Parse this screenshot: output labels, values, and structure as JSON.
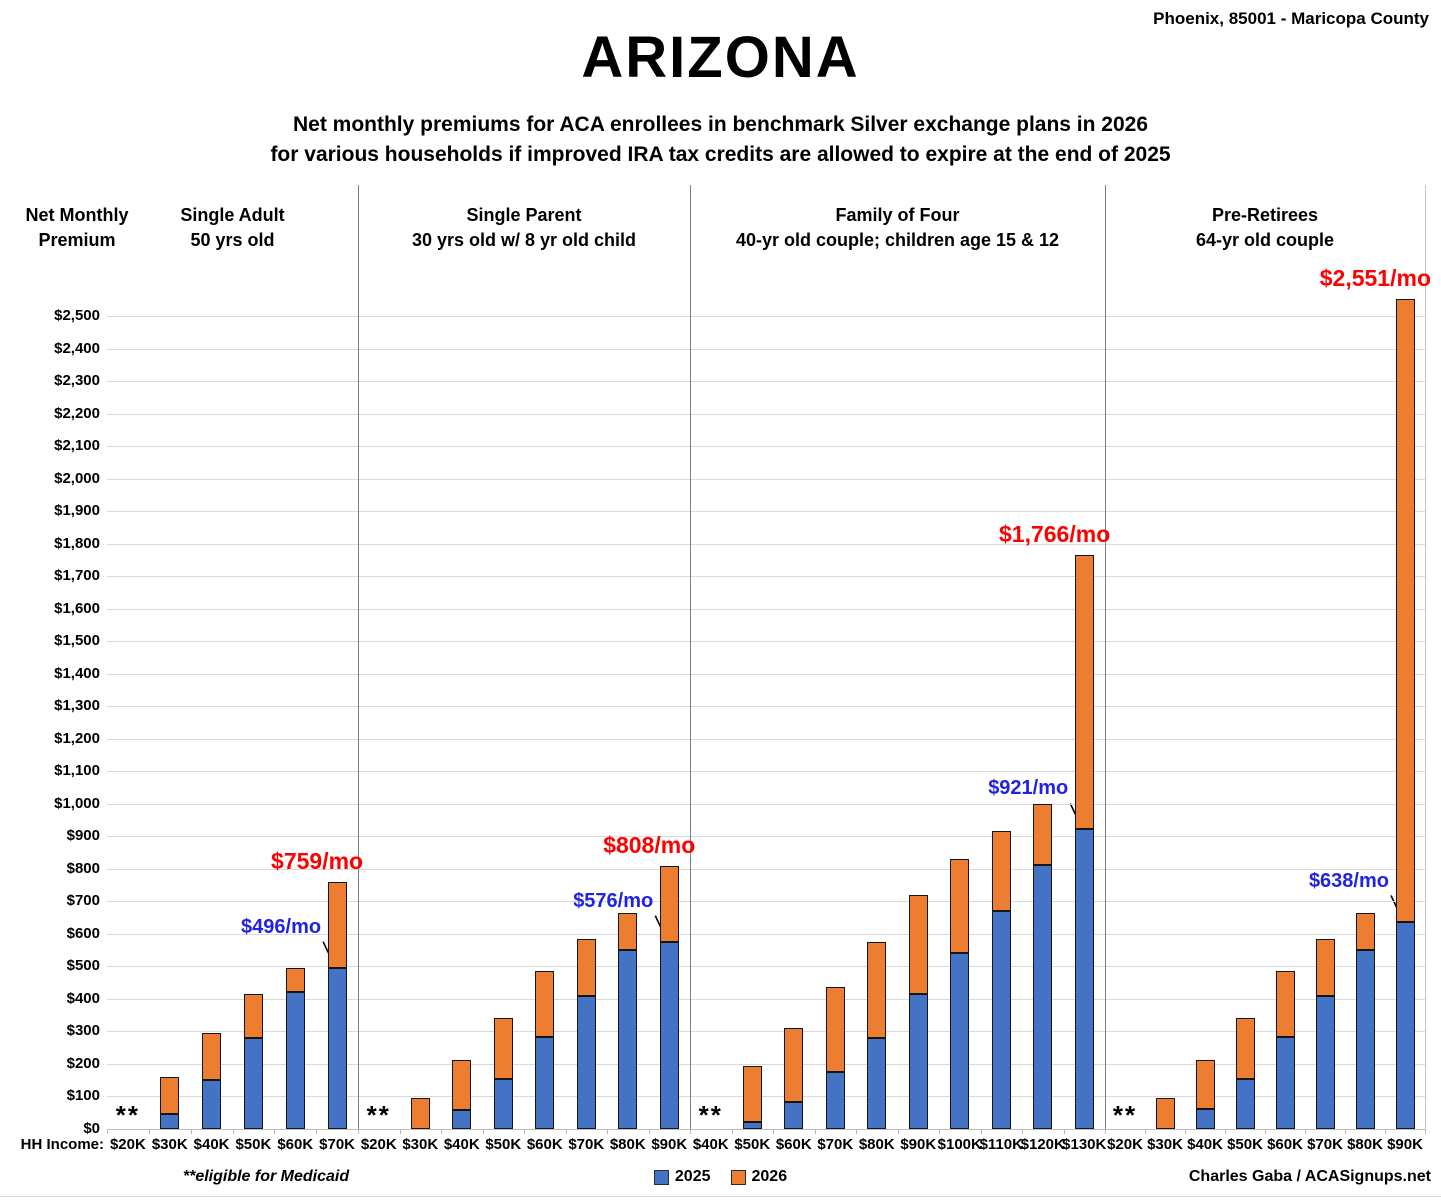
{
  "header": {
    "location": "Phoenix, 85001 - Maricopa County",
    "title": "ARIZONA",
    "subtitle_line1": "Net monthly premiums for ACA enrollees in benchmark Silver exchange plans in 2026",
    "subtitle_line2": "for various households if improved IRA tax credits are allowed to expire at the end of 2025",
    "axis_title_line1": "Net Monthly",
    "axis_title_line2": "Premium"
  },
  "footer": {
    "hh_income_label": "HH Income:",
    "medicaid_note": "**eligible for Medicaid",
    "credit": "Charles Gaba / ACASignups.net"
  },
  "legend": [
    {
      "label": "2025",
      "color": "#4472C4"
    },
    {
      "label": "2026",
      "color": "#ED7D31"
    }
  ],
  "colors": {
    "bar_2025": "#4472C4",
    "bar_2026": "#ED7D31",
    "annotation_2025": "#2222E6",
    "annotation_2026": "#FF0000",
    "gridline": "#D9D9D9",
    "separator": "#7F7F7F"
  },
  "chart_data": {
    "type": "bar",
    "title": "ARIZONA",
    "subtitle": "Net monthly premiums for ACA enrollees in benchmark Silver exchange plans in 2026 for various households if improved IRA tax credits are allowed to expire at the end of 2025",
    "xlabel": "HH Income",
    "ylabel": "Net Monthly Premium",
    "ylim": [
      0,
      2500
    ],
    "ytick_step": 100,
    "grid": true,
    "legend_position": "bottom-center",
    "series_names": [
      "2025",
      "2026"
    ],
    "stacking_note": "2026 net premium drawn as orange segment stacked from the 2025 (blue) value up to the 2026 total",
    "medicaid_marker": "**",
    "groups": [
      {
        "name": "Single Adult",
        "desc": "50 yrs old",
        "categories": [
          "$20K",
          "$30K",
          "$40K",
          "$50K",
          "$60K",
          "$70K"
        ],
        "v2025": [
          null,
          45,
          150,
          280,
          420,
          496
        ],
        "v2026": [
          null,
          160,
          295,
          415,
          495,
          759
        ],
        "annotation_2025": {
          "category": "$70K",
          "text": "$496/mo"
        },
        "annotation_2026": {
          "category": "$70K",
          "text": "$759/mo"
        }
      },
      {
        "name": "Single Parent",
        "desc": "30 yrs old w/ 8 yr old child",
        "categories": [
          "$20K",
          "$30K",
          "$40K",
          "$50K",
          "$60K",
          "$70K",
          "$80K",
          "$90K"
        ],
        "v2025": [
          null,
          0,
          58,
          153,
          283,
          410,
          550,
          576
        ],
        "v2026": [
          null,
          96,
          212,
          341,
          487,
          585,
          665,
          808
        ],
        "annotation_2025": {
          "category": "$90K",
          "text": "$576/mo"
        },
        "annotation_2026": {
          "category": "$90K",
          "text": "$808/mo"
        }
      },
      {
        "name": "Family of Four",
        "desc": "40-yr old couple; children age 15 & 12",
        "categories": [
          "$40K",
          "$50K",
          "$60K",
          "$70K",
          "$80K",
          "$90K",
          "$100K",
          "$110K",
          "$120K",
          "$130K"
        ],
        "v2025": [
          null,
          20,
          83,
          175,
          280,
          415,
          540,
          670,
          812,
          921
        ],
        "v2026": [
          null,
          193,
          310,
          438,
          575,
          721,
          830,
          915,
          998,
          1766
        ],
        "annotation_2025": {
          "category": "$130K",
          "text": "$921/mo"
        },
        "annotation_2026": {
          "category": "$130K",
          "text": "$1,766/mo"
        }
      },
      {
        "name": "Pre-Retirees",
        "desc": "64-yr old couple",
        "categories": [
          "$20K",
          "$30K",
          "$40K",
          "$50K",
          "$60K",
          "$70K",
          "$80K",
          "$90K"
        ],
        "v2025": [
          null,
          0,
          60,
          153,
          283,
          410,
          550,
          638
        ],
        "v2026": [
          null,
          95,
          212,
          341,
          487,
          585,
          665,
          2551
        ],
        "annotation_2025": {
          "category": "$90K",
          "text": "$638/mo"
        },
        "annotation_2026": {
          "category": "$90K",
          "text": "$2,551/mo"
        }
      }
    ]
  }
}
